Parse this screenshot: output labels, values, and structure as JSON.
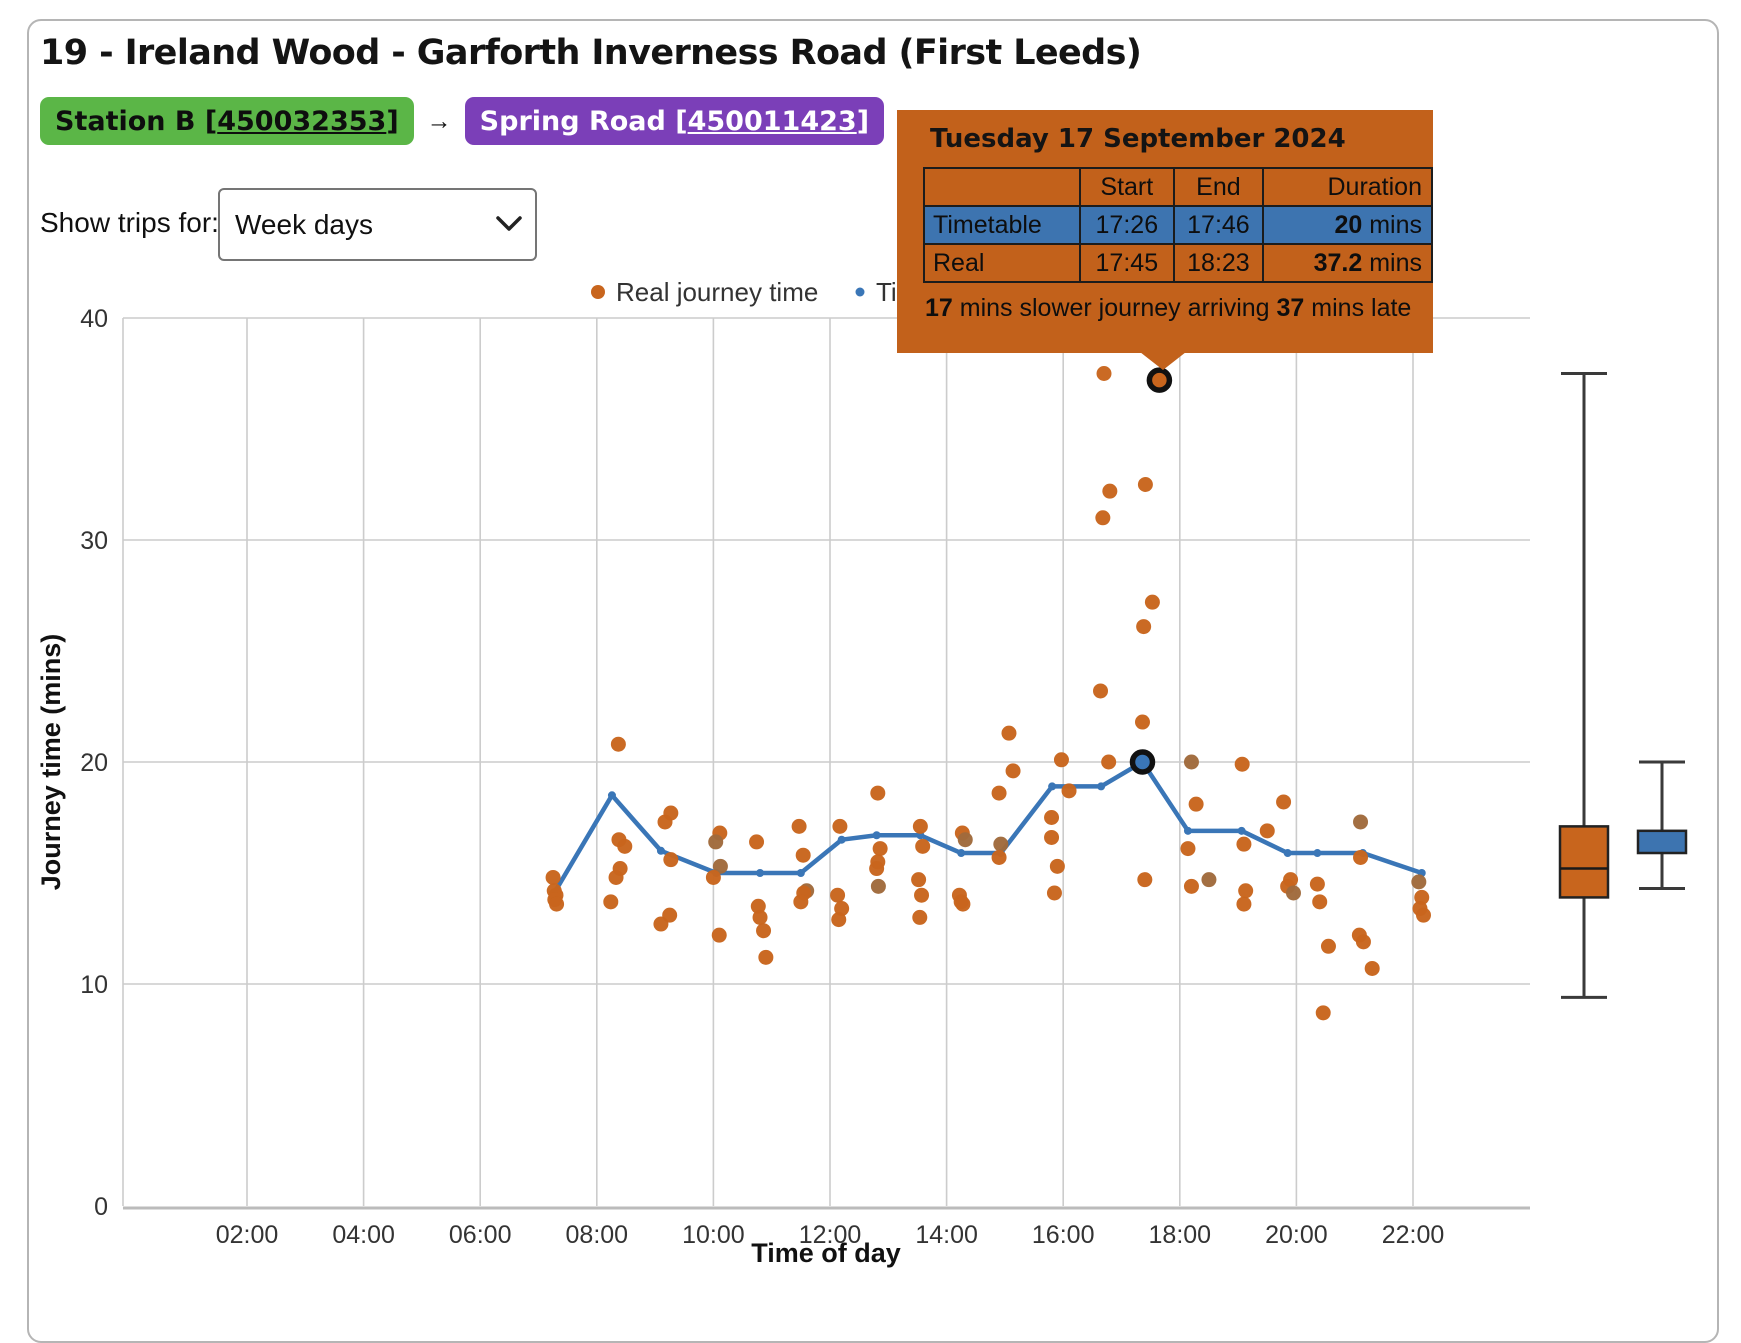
{
  "header": {
    "title": "19 - Ireland Wood - Garforth Inverness Road (First Leeds)"
  },
  "route": {
    "origin": {
      "pre": "Station B [",
      "code": "450032353",
      "post": "]"
    },
    "arrow": "→",
    "destination": {
      "pre": "Spring Road [",
      "code": "450011423",
      "post": "]"
    }
  },
  "controls": {
    "label": "Show trips for:",
    "selected": "Week days"
  },
  "tooltip": {
    "title": "Tuesday 17 September 2024",
    "table": {
      "headers": [
        "",
        "Start",
        "End",
        "Duration"
      ],
      "rows": [
        {
          "name": "Timetable",
          "start": "17:26",
          "end": "17:46",
          "duration_value": "20",
          "duration_unit": " mins"
        },
        {
          "name": "Real",
          "start": "17:45",
          "end": "18:23",
          "duration_value": "37.2",
          "duration_unit": " mins"
        }
      ]
    },
    "footer": {
      "b1": "17",
      "t1": " mins slower journey arriving ",
      "b2": "37",
      "t2": " mins late"
    }
  },
  "chart_data": {
    "type": "scatter",
    "xlabel": "Time of day",
    "ylabel": "Journey time (mins)",
    "x_ticks": [
      "02:00",
      "04:00",
      "06:00",
      "08:00",
      "10:00",
      "12:00",
      "14:00",
      "16:00",
      "18:00",
      "20:00",
      "22:00"
    ],
    "x_tick_hours": [
      2,
      4,
      6,
      8,
      10,
      12,
      14,
      16,
      18,
      20,
      22
    ],
    "y_ticks": [
      0,
      10,
      20,
      30,
      40
    ],
    "ylim": [
      0,
      40
    ],
    "grid": true,
    "legend_position": "top",
    "colors": {
      "real": "#C8651D",
      "real_overlap": "#A06A3C",
      "timetabled": "#3A76B7",
      "timetabled_box": "#3D74B0",
      "highlight_ring": "#111111",
      "gridline": "#cccccc",
      "axisline": "#bbbbbb",
      "tick_text": "#333333"
    },
    "series": [
      {
        "name": "Real journey time",
        "type": "scatter",
        "color": "#C8651D",
        "points": [
          [
            7.25,
            14.8
          ],
          [
            7.27,
            14.2
          ],
          [
            7.3,
            14.0
          ],
          [
            7.28,
            13.8
          ],
          [
            7.31,
            13.6
          ],
          [
            8.37,
            20.8
          ],
          [
            8.38,
            16.5
          ],
          [
            8.48,
            16.2
          ],
          [
            8.4,
            15.2
          ],
          [
            8.33,
            14.8
          ],
          [
            8.24,
            13.7
          ],
          [
            9.17,
            17.3
          ],
          [
            9.27,
            17.7
          ],
          [
            9.27,
            15.6
          ],
          [
            9.25,
            13.1
          ],
          [
            9.1,
            12.7
          ],
          [
            10.11,
            16.8
          ],
          [
            10.04,
            16.4,
            1
          ],
          [
            10.12,
            15.3,
            1
          ],
          [
            10.0,
            14.8
          ],
          [
            10.1,
            12.2
          ],
          [
            10.74,
            16.4
          ],
          [
            10.77,
            13.5
          ],
          [
            10.8,
            13.0
          ],
          [
            10.86,
            12.4
          ],
          [
            10.9,
            11.2
          ],
          [
            11.47,
            17.1
          ],
          [
            11.54,
            15.8
          ],
          [
            11.6,
            14.2,
            1
          ],
          [
            11.55,
            14.1
          ],
          [
            11.5,
            13.7
          ],
          [
            12.17,
            17.1
          ],
          [
            12.13,
            14.0
          ],
          [
            12.2,
            13.4
          ],
          [
            12.15,
            12.9
          ],
          [
            12.82,
            18.6
          ],
          [
            12.86,
            16.1
          ],
          [
            12.82,
            15.5
          ],
          [
            12.8,
            15.2
          ],
          [
            12.83,
            14.4,
            1
          ],
          [
            13.55,
            17.1
          ],
          [
            13.59,
            16.2
          ],
          [
            13.52,
            14.7
          ],
          [
            13.57,
            14.0
          ],
          [
            13.54,
            13.0
          ],
          [
            14.27,
            16.8
          ],
          [
            14.32,
            16.5,
            1
          ],
          [
            14.22,
            14.0
          ],
          [
            14.25,
            13.7
          ],
          [
            14.28,
            13.6
          ],
          [
            14.9,
            18.6
          ],
          [
            14.93,
            16.3,
            1
          ],
          [
            14.9,
            15.7
          ],
          [
            15.07,
            21.3
          ],
          [
            15.14,
            19.6
          ],
          [
            15.8,
            17.5
          ],
          [
            15.8,
            16.6
          ],
          [
            15.85,
            14.1
          ],
          [
            15.9,
            15.3
          ],
          [
            15.97,
            20.1
          ],
          [
            16.1,
            18.7
          ],
          [
            16.64,
            23.2
          ],
          [
            16.68,
            31.0
          ],
          [
            16.7,
            37.5
          ],
          [
            16.8,
            32.2
          ],
          [
            16.78,
            20.0
          ],
          [
            17.36,
            21.8
          ],
          [
            17.38,
            26.1
          ],
          [
            17.41,
            32.5
          ],
          [
            17.53,
            27.2
          ],
          [
            17.4,
            14.7
          ],
          [
            18.2,
            20.0,
            1
          ],
          [
            18.28,
            18.1
          ],
          [
            18.14,
            16.1
          ],
          [
            18.2,
            14.4
          ],
          [
            18.5,
            14.7,
            1
          ],
          [
            19.07,
            19.9
          ],
          [
            19.5,
            16.9
          ],
          [
            19.1,
            16.3
          ],
          [
            19.13,
            14.2
          ],
          [
            19.1,
            13.6
          ],
          [
            19.78,
            18.2
          ],
          [
            19.85,
            14.4
          ],
          [
            19.9,
            14.7
          ],
          [
            19.95,
            14.1,
            1
          ],
          [
            20.36,
            14.5
          ],
          [
            20.4,
            13.7
          ],
          [
            20.55,
            11.7
          ],
          [
            20.46,
            8.7
          ],
          [
            21.1,
            17.3,
            1
          ],
          [
            21.1,
            15.7
          ],
          [
            21.08,
            12.2
          ],
          [
            21.15,
            11.9
          ],
          [
            21.3,
            10.7
          ],
          [
            22.1,
            14.6,
            1
          ],
          [
            22.15,
            13.9
          ],
          [
            22.12,
            13.4
          ],
          [
            22.18,
            13.1
          ]
        ]
      },
      {
        "name": "Timetabled journey time",
        "type": "line",
        "color": "#3A76B7",
        "points": [
          [
            7.27,
            14.1
          ],
          [
            8.26,
            18.5
          ],
          [
            9.1,
            16.0
          ],
          [
            10.05,
            15.0
          ],
          [
            10.8,
            15.0
          ],
          [
            11.5,
            15.0
          ],
          [
            12.2,
            16.5
          ],
          [
            12.8,
            16.7
          ],
          [
            13.55,
            16.7
          ],
          [
            14.25,
            15.9
          ],
          [
            14.93,
            15.9
          ],
          [
            15.81,
            18.9
          ],
          [
            16.65,
            18.9
          ],
          [
            17.36,
            20.0
          ],
          [
            18.14,
            16.9
          ],
          [
            19.06,
            16.9
          ],
          [
            19.85,
            15.9
          ],
          [
            20.36,
            15.9
          ],
          [
            21.14,
            15.9
          ],
          [
            22.15,
            15.0
          ]
        ]
      }
    ],
    "highlight": {
      "real_point": [
        17.65,
        37.2
      ],
      "timetabled_point": [
        17.36,
        20.0
      ]
    },
    "boxplots": [
      {
        "name": "Real journey time",
        "color": "#C8651D",
        "whisker_low": 9.4,
        "q1": 13.9,
        "median": 15.2,
        "q3": 17.1,
        "whisker_high": 37.5
      },
      {
        "name": "Timetabled journey time",
        "color": "#3D74B0",
        "whisker_low": 14.3,
        "q1": 15.9,
        "median": null,
        "q3": 16.9,
        "whisker_high": 20.0
      }
    ]
  }
}
